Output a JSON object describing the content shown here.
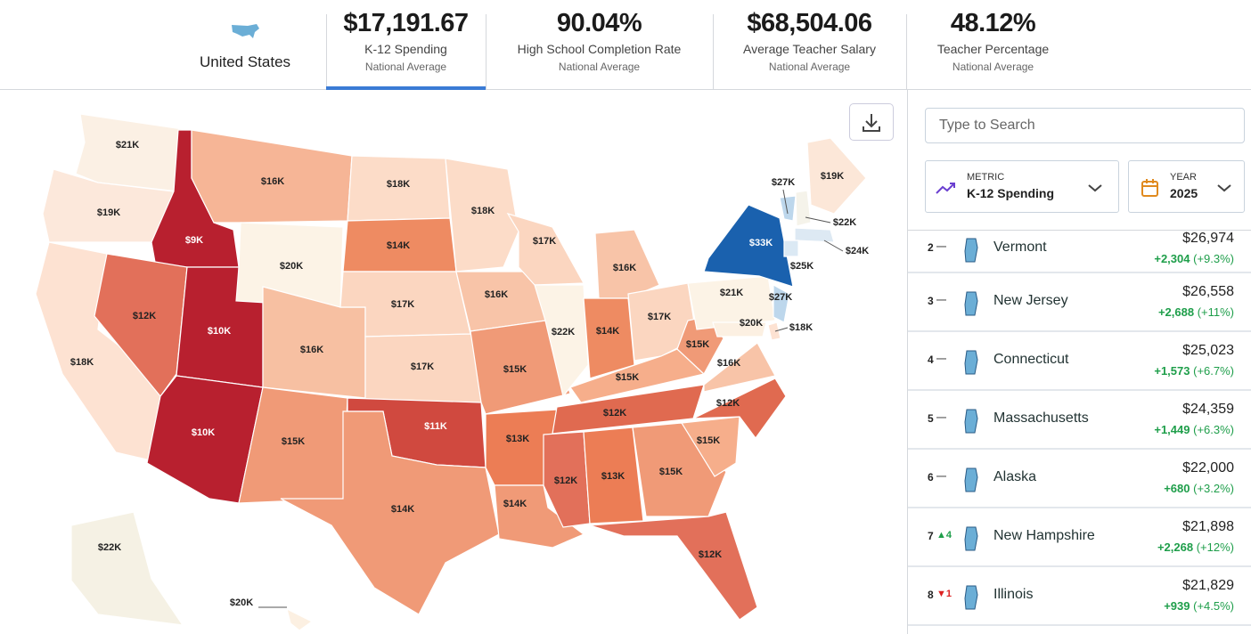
{
  "header": {
    "country": "United States",
    "metrics": [
      {
        "value": "$17,191.67",
        "label": "K-12 Spending",
        "sub": "National Average"
      },
      {
        "value": "90.04%",
        "label": "High School Completion Rate",
        "sub": "National Average"
      },
      {
        "value": "$68,504.06",
        "label": "Average Teacher Salary",
        "sub": "National Average"
      },
      {
        "value": "48.12%",
        "label": "Teacher Percentage",
        "sub": "National Average"
      }
    ]
  },
  "map": {
    "states": [
      {
        "label": "$21K",
        "color": "#fbf0e4"
      },
      {
        "label": "$19K",
        "color": "#fce8db"
      },
      {
        "label": "$18K",
        "color": "#fde2d2"
      },
      {
        "label": "$9K",
        "color": "#b8202f"
      },
      {
        "label": "$12K",
        "color": "#e2705a"
      },
      {
        "label": "$10K",
        "color": "#b8202f"
      },
      {
        "label": "$10K",
        "color": "#b8202f"
      },
      {
        "label": "$16K",
        "color": "#f6b596"
      },
      {
        "label": "$20K",
        "color": "#fcf3e6"
      },
      {
        "label": "$16K",
        "color": "#f7c0a2"
      },
      {
        "label": "$15K",
        "color": "#f09a77"
      },
      {
        "label": "$18K",
        "color": "#fcdcc8"
      },
      {
        "label": "$14K",
        "color": "#ee8b62"
      },
      {
        "label": "$17K",
        "color": "#fbd6c0"
      },
      {
        "label": "$17K",
        "color": "#fbd6c0"
      },
      {
        "label": "$11K",
        "color": "#d0493f"
      },
      {
        "label": "$14K",
        "color": "#f09a77"
      },
      {
        "label": "$18K",
        "color": "#fcdcc8"
      },
      {
        "label": "$16K",
        "color": "#f8c4a8"
      },
      {
        "label": "$15K",
        "color": "#f09a77"
      },
      {
        "label": "$13K",
        "color": "#ec7d55"
      },
      {
        "label": "$14K",
        "color": "#f09a77"
      },
      {
        "label": "$17K",
        "color": "#fbd6c0"
      },
      {
        "label": "$22K",
        "color": "#fcf3e6"
      },
      {
        "label": "$16K",
        "color": "#f8c4a8"
      },
      {
        "label": "$14K",
        "color": "#ee8b62"
      },
      {
        "label": "$17K",
        "color": "#fbd6c0"
      },
      {
        "label": "$15K",
        "color": "#f6ae8b"
      },
      {
        "label": "$12K",
        "color": "#e06a50"
      },
      {
        "label": "$12K",
        "color": "#e2705a"
      },
      {
        "label": "$13K",
        "color": "#ec7d55"
      },
      {
        "label": "$15K",
        "color": "#f09a77"
      },
      {
        "label": "$12K",
        "color": "#e2705a"
      },
      {
        "label": "$15K",
        "color": "#f6ae8b"
      },
      {
        "label": "$12K",
        "color": "#e06a50"
      },
      {
        "label": "$16K",
        "color": "#f8c4a8"
      },
      {
        "label": "$15K",
        "color": "#f09a77"
      },
      {
        "label": "$21K",
        "color": "#fcf3e6"
      },
      {
        "label": "$33K",
        "color": "#1a61ae"
      },
      {
        "label": "$20K",
        "color": "#fcf0e2"
      },
      {
        "label": "$27K",
        "color": "#bdd7ec"
      },
      {
        "label": "$18K",
        "color": "#fde2d2"
      },
      {
        "label": "$27K",
        "color": "#bdd7ec"
      },
      {
        "label": "$22K",
        "color": "#f5f3ea"
      },
      {
        "label": "$19K",
        "color": "#fce7d8"
      },
      {
        "label": "$24K",
        "color": "#dde9f3"
      },
      {
        "label": "$25K",
        "color": "#dbe9f4"
      },
      {
        "label": "$22K",
        "color": "#f5f1e4"
      },
      {
        "label": "$20K",
        "color": "#fcf0e2"
      }
    ]
  },
  "sidebar": {
    "search_placeholder": "Type to Search",
    "metric": {
      "key": "METRIC",
      "value": "K-12 Spending"
    },
    "year": {
      "key": "YEAR",
      "value": "2025"
    },
    "rankings": [
      {
        "rank": "2",
        "change": "—",
        "state": "Vermont",
        "value": "$26,974",
        "delta": "+2,304",
        "pct": "(+9.3%)"
      },
      {
        "rank": "3",
        "change": "—",
        "state": "New Jersey",
        "value": "$26,558",
        "delta": "+2,688",
        "pct": "(+11%)"
      },
      {
        "rank": "4",
        "change": "—",
        "state": "Connecticut",
        "value": "$25,023",
        "delta": "+1,573",
        "pct": "(+6.7%)"
      },
      {
        "rank": "5",
        "change": "—",
        "state": "Massachusetts",
        "value": "$24,359",
        "delta": "+1,449",
        "pct": "(+6.3%)"
      },
      {
        "rank": "6",
        "change": "—",
        "state": "Alaska",
        "value": "$22,000",
        "delta": "+680",
        "pct": "(+3.2%)"
      },
      {
        "rank": "7",
        "change": "▲4",
        "state": "New Hampshire",
        "value": "$21,898",
        "delta": "+2,268",
        "pct": "(+12%)"
      },
      {
        "rank": "8",
        "change": "▼1",
        "state": "Illinois",
        "value": "$21,829",
        "delta": "+939",
        "pct": "(+4.5%)"
      }
    ]
  }
}
